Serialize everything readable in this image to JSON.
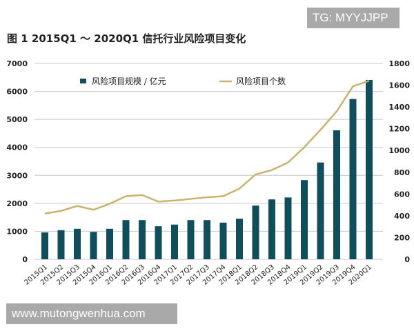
{
  "watermarks": {
    "top": "TG: MYYJJPP",
    "bottom": "www.mutongwenhua.com"
  },
  "chart_data": {
    "type": "bar+line",
    "title": "图 1  2015Q1 ～ 2020Q1 信托行业风险项目变化",
    "categories": [
      "2015Q1",
      "2015Q2",
      "2015Q3",
      "2015Q4",
      "2016Q1",
      "2016Q2",
      "2016Q3",
      "2016Q4",
      "2017Q1",
      "2017Q2",
      "2017Q3",
      "2017Q4",
      "2018Q1",
      "2018Q2",
      "2018Q3",
      "2018Q4",
      "2019Q1",
      "2019Q2",
      "2019Q3",
      "2019Q4",
      "2020Q1"
    ],
    "series": [
      {
        "name": "风险项目规模 / 亿元",
        "type": "bar",
        "axis": "left",
        "color": "#0d4f5c",
        "values": [
          960,
          1040,
          1090,
          980,
          1090,
          1400,
          1400,
          1180,
          1240,
          1400,
          1400,
          1310,
          1450,
          1920,
          2140,
          2210,
          2830,
          3460,
          4610,
          5730,
          6410
        ]
      },
      {
        "name": "风险项目个数",
        "type": "line",
        "axis": "right",
        "color": "#c9b26a",
        "values": [
          420,
          445,
          490,
          455,
          510,
          580,
          590,
          530,
          540,
          555,
          570,
          580,
          650,
          780,
          820,
          890,
          1030,
          1190,
          1360,
          1590,
          1640
        ]
      }
    ],
    "y_left": {
      "range": [
        0,
        7000
      ],
      "ticks": [
        "0",
        "1000",
        "2000",
        "3000",
        "4000",
        "5000",
        "6000",
        "7000"
      ]
    },
    "y_right": {
      "range": [
        0,
        1800
      ],
      "ticks": [
        "0",
        "200",
        "400",
        "600",
        "800",
        "1000",
        "1200",
        "1400",
        "1600",
        "1800"
      ]
    },
    "grid": true,
    "legend": "top"
  }
}
